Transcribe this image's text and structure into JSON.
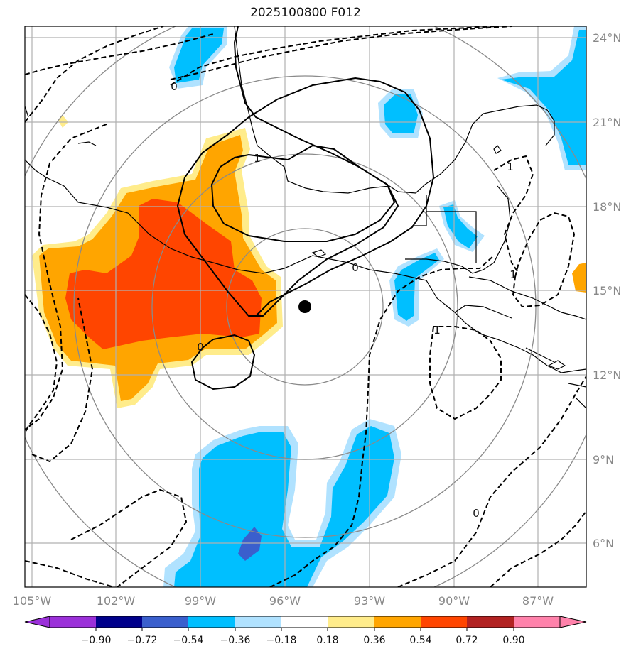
{
  "title": "2025100800 F012",
  "lon_ticks": [
    "105°W",
    "102°W",
    "99°W",
    "96°W",
    "93°W",
    "90°W",
    "87°W"
  ],
  "lat_ticks": [
    "24°N",
    "21°N",
    "18°N",
    "15°N",
    "12°N",
    "9°N",
    "6°N"
  ],
  "colorbar": {
    "colors": [
      "#9b30d9",
      "#00008b",
      "#3a5fcd",
      "#00bfff",
      "#b0e2ff",
      "#ffffff",
      "#ffec8b",
      "#ffa500",
      "#ff4500",
      "#b22222",
      "#ff82ab"
    ],
    "ticks": [
      "−0.90",
      "−0.72",
      "−0.54",
      "−0.36",
      "−0.18",
      "0.18",
      "0.36",
      "0.54",
      "0.72",
      "0.90"
    ]
  },
  "contour_labels": [
    "1",
    "0",
    "1",
    "0",
    "0",
    "1",
    "1",
    "0"
  ],
  "storm_center": {
    "lon": -95.3,
    "lat": 14.4
  },
  "colors": {
    "grid": "#b0b0b0",
    "range_rings": "#8a8a8a",
    "coastline": "#000000",
    "positive_fill": "#ffa500",
    "strong_positive_fill": "#ff4500",
    "negative_fill": "#00bfff"
  }
}
